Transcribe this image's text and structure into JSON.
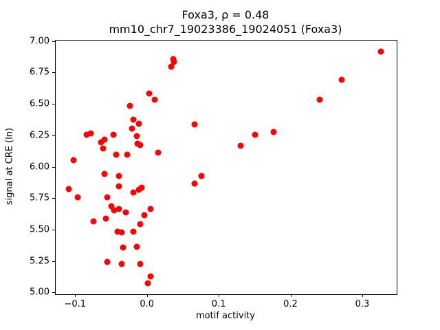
{
  "figure": {
    "title_line1": "Foxa3, ρ = 0.48",
    "title_line2": "mm10_chr7_19023386_19024051 (Foxa3)"
  },
  "chart_data": {
    "type": "scatter",
    "title": "Foxa3, ρ = 0.48",
    "subtitle": "mm10_chr7_19023386_19024051 (Foxa3)",
    "xlabel": "motif activity",
    "ylabel": "signal at CRE (ln)",
    "correlation_rho": 0.48,
    "marker_color": "#ff0000",
    "marker_diameter": 9,
    "grid": false,
    "legend": "none",
    "xlim": [
      -0.128,
      0.347
    ],
    "ylim": [
      4.99,
      7.01
    ],
    "xticks": [
      -0.1,
      0.0,
      0.1,
      0.2,
      0.3
    ],
    "xtick_labels": [
      "−0.1",
      "0.0",
      "0.1",
      "0.2",
      "0.3"
    ],
    "yticks": [
      5.0,
      5.25,
      5.5,
      5.75,
      6.0,
      6.25,
      6.5,
      6.75,
      7.0
    ],
    "ytick_labels": [
      "5.00",
      "5.25",
      "5.50",
      "5.75",
      "6.00",
      "6.25",
      "6.50",
      "6.75",
      "7.00"
    ],
    "points": [
      [
        -0.11,
        5.83
      ],
      [
        -0.103,
        6.06
      ],
      [
        -0.097,
        5.76
      ],
      [
        -0.085,
        6.26
      ],
      [
        -0.079,
        6.27
      ],
      [
        -0.075,
        5.57
      ],
      [
        -0.065,
        6.2
      ],
      [
        -0.062,
        6.15
      ],
      [
        -0.06,
        6.22
      ],
      [
        -0.06,
        5.95
      ],
      [
        -0.058,
        5.59
      ],
      [
        -0.056,
        5.76
      ],
      [
        -0.056,
        5.25
      ],
      [
        -0.048,
        6.26
      ],
      [
        -0.05,
        5.69
      ],
      [
        -0.047,
        5.66
      ],
      [
        -0.044,
        6.1
      ],
      [
        -0.04,
        5.93
      ],
      [
        -0.04,
        5.85
      ],
      [
        -0.04,
        5.67
      ],
      [
        -0.042,
        5.49
      ],
      [
        -0.036,
        5.48
      ],
      [
        -0.036,
        5.23
      ],
      [
        -0.034,
        5.36
      ],
      [
        -0.03,
        5.64
      ],
      [
        -0.028,
        6.1
      ],
      [
        -0.025,
        6.49
      ],
      [
        -0.022,
        6.31
      ],
      [
        -0.02,
        6.38
      ],
      [
        -0.02,
        5.8
      ],
      [
        -0.02,
        5.49
      ],
      [
        -0.015,
        6.25
      ],
      [
        -0.014,
        6.19
      ],
      [
        -0.015,
        5.37
      ],
      [
        -0.012,
        6.35
      ],
      [
        -0.01,
        6.18
      ],
      [
        -0.012,
        5.82
      ],
      [
        -0.008,
        5.84
      ],
      [
        -0.01,
        5.55
      ],
      [
        -0.01,
        5.23
      ],
      [
        -0.004,
        5.62
      ],
      [
        0.0,
        5.08
      ],
      [
        0.002,
        6.59
      ],
      [
        0.004,
        5.67
      ],
      [
        0.004,
        5.13
      ],
      [
        0.01,
        6.54
      ],
      [
        0.015,
        6.12
      ],
      [
        0.033,
        6.8
      ],
      [
        0.036,
        6.86
      ],
      [
        0.037,
        6.84
      ],
      [
        0.065,
        6.34
      ],
      [
        0.065,
        5.87
      ],
      [
        0.075,
        5.93
      ],
      [
        0.13,
        6.17
      ],
      [
        0.15,
        6.26
      ],
      [
        0.176,
        6.28
      ],
      [
        0.24,
        6.54
      ],
      [
        0.27,
        6.7
      ],
      [
        0.325,
        6.92
      ]
    ]
  }
}
